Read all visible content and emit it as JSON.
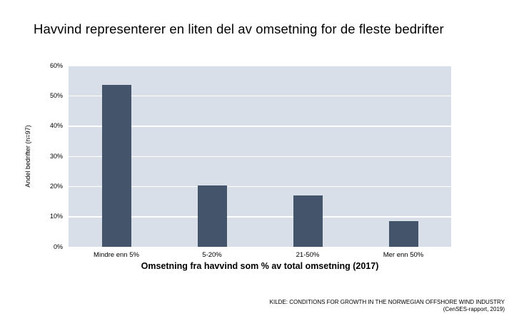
{
  "title": "Havvind representerer en liten del av omsetning for de fleste bedrifter",
  "source": {
    "line1": "KILDE: CONDITIONS FOR GROWTH IN THE NORWEGIAN OFFSHORE WIND INDUSTRY",
    "line2": "(CenSES-rapport, 2019)"
  },
  "colors": {
    "bar": "#44546a",
    "plot_background": "#d9dfe8",
    "gridline": "#ffffff",
    "text": "#000000"
  },
  "chart_data": {
    "type": "bar",
    "categories": [
      "Mindre enn 5%",
      "5-20%",
      "21-50%",
      "Mer enn 50%"
    ],
    "values": [
      53.6,
      20.3,
      17.0,
      8.4
    ],
    "title": "",
    "xlabel": "Omsetning fra havvind som % av total omsetning (2017)",
    "ylabel": "Andel bedrifter (n=97)",
    "ylim": [
      0,
      60
    ],
    "ytick_step": 10,
    "ytick_labels": [
      "0%",
      "10%",
      "20%",
      "30%",
      "40%",
      "50%",
      "60%"
    ],
    "grid": true,
    "legend": false
  }
}
